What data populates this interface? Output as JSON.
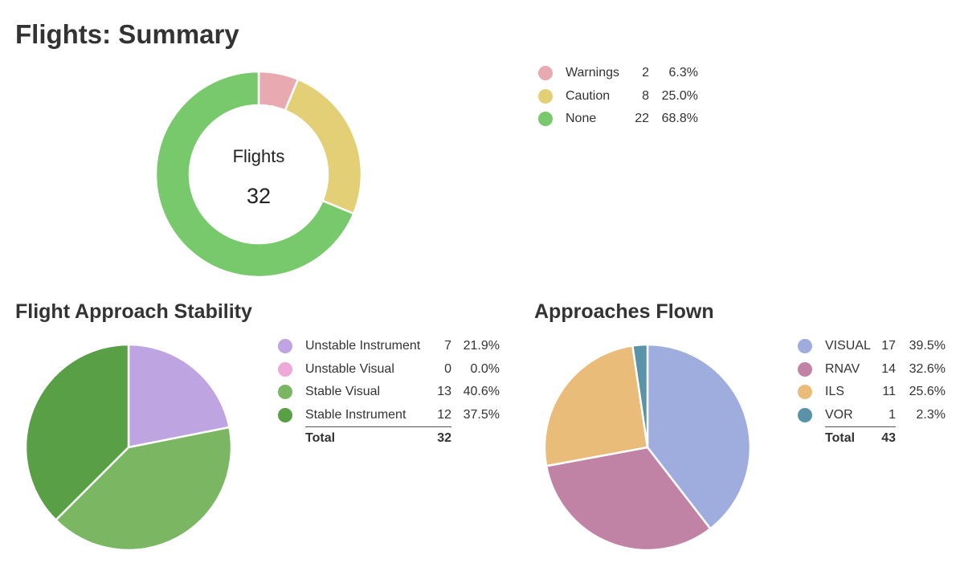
{
  "page": {
    "title": "Flights: Summary"
  },
  "chart_data": [
    {
      "id": "summary",
      "type": "pie",
      "donut": true,
      "center_title": "Flights",
      "center_value": "32",
      "slices": [
        {
          "label": "Warnings",
          "count": "2",
          "percent": "6.3%",
          "value": 2,
          "color": "#e8a9b0"
        },
        {
          "label": "Caution",
          "count": "8",
          "percent": "25.0%",
          "value": 8,
          "color": "#e3cf76"
        },
        {
          "label": "None",
          "count": "22",
          "percent": "68.8%",
          "value": 22,
          "color": "#78c86c"
        }
      ],
      "legend_placement": "right"
    },
    {
      "id": "stability",
      "type": "pie",
      "title": "Flight Approach Stability",
      "slices": [
        {
          "label": "Unstable Instrument",
          "count": "7",
          "percent": "21.9%",
          "value": 7,
          "color": "#bea4e0"
        },
        {
          "label": "Unstable Visual",
          "count": "0",
          "percent": "0.0%",
          "value": 0,
          "color": "#eeaad6"
        },
        {
          "label": "Stable Visual",
          "count": "13",
          "percent": "40.6%",
          "value": 13,
          "color": "#7bb662"
        },
        {
          "label": "Stable Instrument",
          "count": "12",
          "percent": "37.5%",
          "value": 12,
          "color": "#589f45"
        }
      ],
      "total_label": "Total",
      "total_value": "32",
      "legend_placement": "right"
    },
    {
      "id": "approaches",
      "type": "pie",
      "title": "Approaches Flown",
      "slices": [
        {
          "label": "VISUAL",
          "count": "17",
          "percent": "39.5%",
          "value": 17,
          "color": "#9fadde"
        },
        {
          "label": "RNAV",
          "count": "14",
          "percent": "32.6%",
          "value": 14,
          "color": "#c083a6"
        },
        {
          "label": "ILS",
          "count": "11",
          "percent": "25.6%",
          "value": 11,
          "color": "#e9bc79"
        },
        {
          "label": "VOR",
          "count": "1",
          "percent": "2.3%",
          "value": 1,
          "color": "#5a92aa"
        }
      ],
      "total_label": "Total",
      "total_value": "43",
      "legend_placement": "right"
    }
  ]
}
